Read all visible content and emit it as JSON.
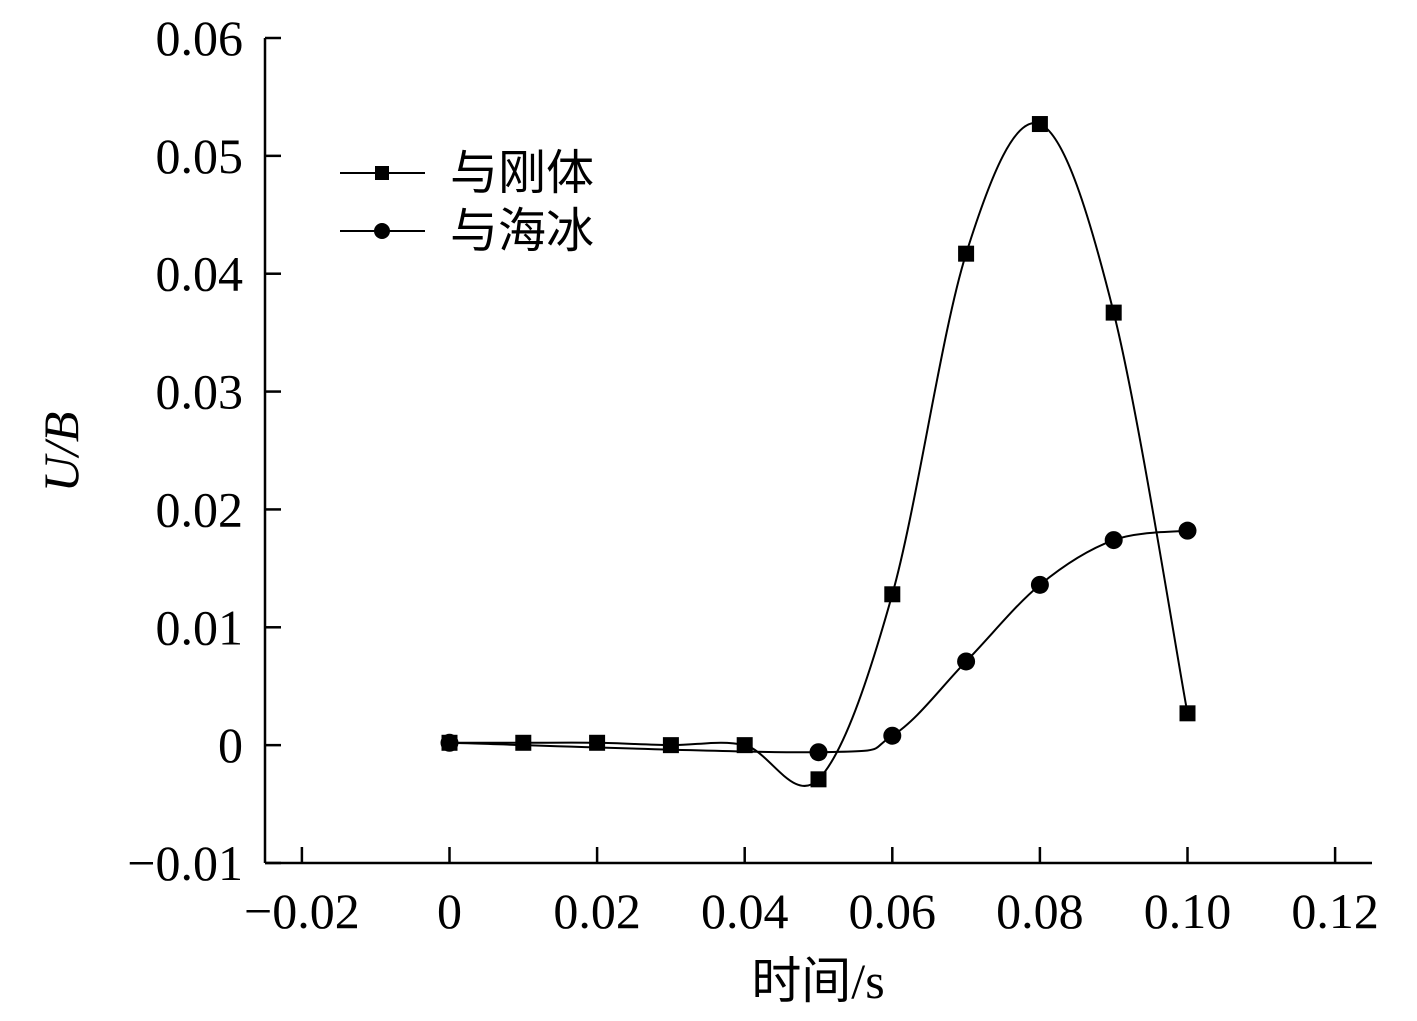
{
  "chart_data": {
    "type": "line",
    "xlabel": "时间/s",
    "ylabel": "U/B",
    "xlim": [
      -0.025,
      0.125
    ],
    "ylim": [
      -0.01,
      0.06
    ],
    "xticks": [
      "−0.02",
      "0",
      "0.02",
      "0.04",
      "0.06",
      "0.08",
      "0.10",
      "0.12"
    ],
    "xtick_values": [
      -0.02,
      0,
      0.02,
      0.04,
      0.06,
      0.08,
      0.1,
      0.12
    ],
    "yticks": [
      "−0.01",
      "0",
      "0.01",
      "0.02",
      "0.03",
      "0.04",
      "0.05",
      "0.06"
    ],
    "ytick_values": [
      -0.01,
      0,
      0.01,
      0.02,
      0.03,
      0.04,
      0.05,
      0.06
    ],
    "grid": false,
    "legend_position": "top-left",
    "series": [
      {
        "name": "与刚体",
        "marker": "square",
        "color": "#000000",
        "x": [
          0,
          0.01,
          0.02,
          0.03,
          0.04,
          0.05,
          0.06,
          0.07,
          0.08,
          0.09,
          0.1
        ],
        "y": [
          0.0002,
          0.0002,
          0.0002,
          0.0,
          0.0,
          -0.0029,
          0.0128,
          0.0417,
          0.0527,
          0.0367,
          0.0027
        ]
      },
      {
        "name": "与海冰",
        "marker": "circle",
        "color": "#000000",
        "x": [
          0,
          0.05,
          0.06,
          0.07,
          0.08,
          0.09,
          0.1
        ],
        "y": [
          0.0002,
          -0.0006,
          0.0008,
          0.0071,
          0.0136,
          0.0174,
          0.0182
        ]
      }
    ]
  }
}
